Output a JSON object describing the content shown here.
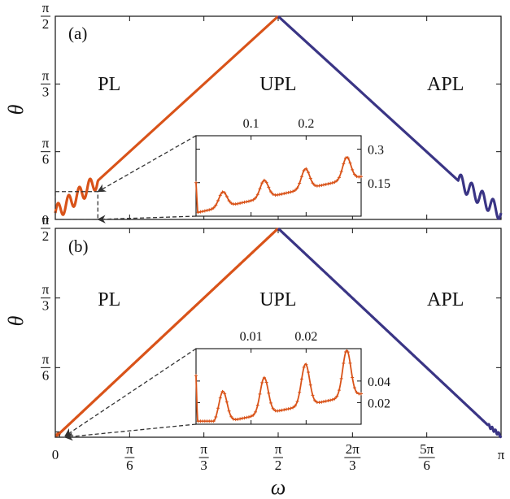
{
  "chart_data": [
    {
      "id": "a",
      "type": "line",
      "panel_label": "(a)",
      "ylabel": "θ",
      "xlim": [
        0,
        3.14159265
      ],
      "ylim": [
        0,
        1.57079633
      ],
      "yticks": [
        {
          "value": 1.57079633,
          "num": "π",
          "den": "2"
        },
        {
          "value": 1.04719755,
          "num": "π",
          "den": "3"
        },
        {
          "value": 0.52359878,
          "num": "π",
          "den": "6"
        },
        {
          "value": 0,
          "label": "0"
        }
      ],
      "regions": [
        {
          "label": "PL",
          "x": 0.38,
          "y": 1.13
        },
        {
          "label": "UPL",
          "x": 1.57,
          "y": 1.13
        },
        {
          "label": "APL",
          "x": 2.75,
          "y": 1.13
        }
      ],
      "series": [
        {
          "name": "PL",
          "color": "#D95319",
          "x": [
            0.0,
            0.3,
            1.5708
          ],
          "y": [
            0.05,
            0.3,
            1.5708
          ],
          "oscillation": {
            "x_end": 0.3,
            "amplitude": 0.06,
            "cycles": 4
          }
        },
        {
          "name": "APL",
          "color": "#3A3585",
          "x": [
            1.5708,
            2.84,
            3.1416
          ],
          "y": [
            1.5708,
            0.3,
            0.05
          ],
          "oscillation": {
            "x_start": 2.84,
            "amplitude": 0.06,
            "cycles": 4
          }
        }
      ],
      "zoom_box": {
        "x": [
          0,
          0.3
        ],
        "y": [
          0,
          0.215
        ]
      },
      "inset": {
        "xlim": [
          0,
          0.3
        ],
        "ylim": [
          0,
          0.36
        ],
        "xticks": [
          {
            "value": 0.1,
            "label": "0.1"
          },
          {
            "value": 0.2,
            "label": "0.2"
          }
        ],
        "yticks": [
          {
            "value": 0.3,
            "label": "0.3"
          },
          {
            "value": 0.15,
            "label": "0.15"
          }
        ],
        "series": {
          "color": "#D95319",
          "base": 0.03,
          "slope": 0.65,
          "amplitude": 0.075,
          "cycles": 4,
          "spike_start": 0.15
        }
      }
    },
    {
      "id": "b",
      "type": "line",
      "panel_label": "(b)",
      "ylabel": "θ",
      "xlabel": "ω",
      "xlim": [
        0,
        3.14159265
      ],
      "ylim": [
        0,
        1.57079633
      ],
      "xticks": [
        {
          "value": 0,
          "label": "0"
        },
        {
          "value": 0.52359878,
          "num": "π",
          "den": "6"
        },
        {
          "value": 1.04719755,
          "num": "π",
          "den": "3"
        },
        {
          "value": 1.57079633,
          "num": "π",
          "den": "2"
        },
        {
          "value": 2.0943951,
          "num": "2π",
          "den": "3"
        },
        {
          "value": 2.61799388,
          "num": "5π",
          "den": "6"
        },
        {
          "value": 3.14159265,
          "label": "π"
        }
      ],
      "yticks": [
        {
          "value": 1.57079633,
          "num": "π",
          "den": "2"
        },
        {
          "value": 1.04719755,
          "num": "π",
          "den": "3"
        },
        {
          "value": 0.52359878,
          "num": "π",
          "den": "6"
        }
      ],
      "regions": [
        {
          "label": "PL",
          "x": 0.38,
          "y": 1.05
        },
        {
          "label": "UPL",
          "x": 1.57,
          "y": 1.05
        },
        {
          "label": "APL",
          "x": 2.75,
          "y": 1.05
        }
      ],
      "series": [
        {
          "name": "PL",
          "color": "#D95319",
          "x": [
            0.0,
            0.03,
            1.5708
          ],
          "y": [
            0.01,
            0.03,
            1.5708
          ],
          "oscillation": {
            "x_end": 0.03,
            "amplitude": 0.008,
            "cycles": 4
          }
        },
        {
          "name": "APL",
          "color": "#3A3585",
          "x": [
            1.5708,
            3.05,
            3.1416
          ],
          "y": [
            1.5708,
            0.09,
            0.01
          ],
          "oscillation": {
            "x_start": 3.05,
            "amplitude": 0.012,
            "cycles": 4
          }
        }
      ],
      "zoom_box": {
        "x": [
          0,
          0.03
        ],
        "y": [
          0,
          0.04
        ]
      },
      "inset": {
        "xlim": [
          0,
          0.03
        ],
        "ylim": [
          0,
          0.07
        ],
        "xticks": [
          {
            "value": 0.01,
            "label": "0.01"
          },
          {
            "value": 0.02,
            "label": "0.02"
          }
        ],
        "yticks": [
          {
            "value": 0.04,
            "label": "0.04"
          },
          {
            "value": 0.02,
            "label": "0.02"
          }
        ],
        "series": {
          "color": "#D95319",
          "base": 0.003,
          "slope": 1.1,
          "amplitude": 0.032,
          "cycles": 4,
          "spike_start": 0.045
        }
      }
    }
  ]
}
